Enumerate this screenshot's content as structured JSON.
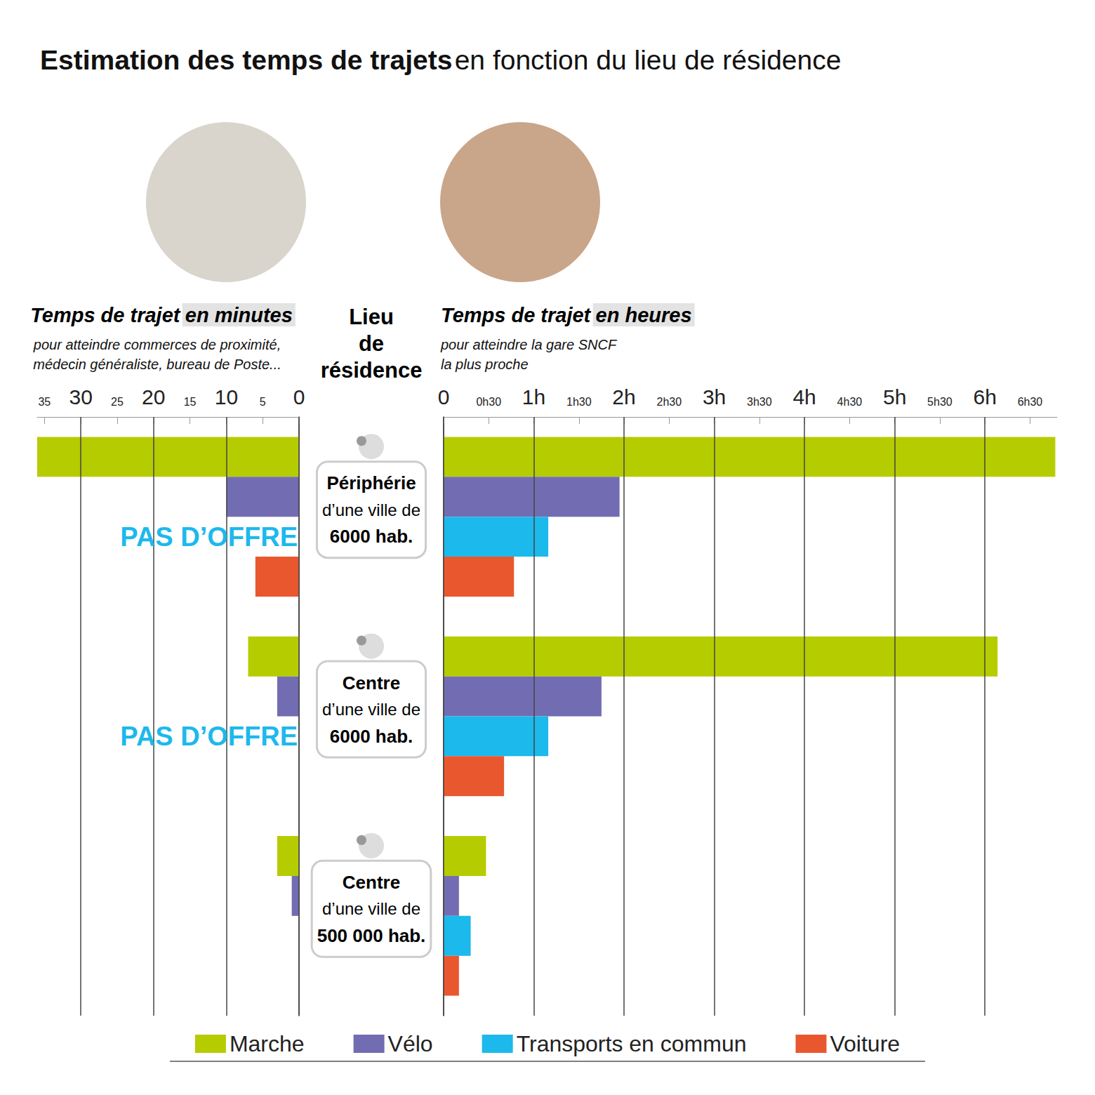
{
  "title": {
    "bold": "Estimation des temps de trajets",
    "regular": "en fonction du lieu de résidence"
  },
  "center_heading": "Lieu\nde\nrésidence",
  "chart_data": [
    {
      "type": "bar",
      "orientation": "horizontal",
      "title_parts": [
        "Temps de trajet",
        "en minutes"
      ],
      "subtitle": "pour atteindre commerces de proximité,\nmédecin généraliste, bureau de Poste...",
      "categories": [
        "Périphérie\nd’une ville de\n6000 hab.",
        "Centre\nd’une ville de\n6000 hab.",
        "Centre\nd’une ville de\n500 000 hab."
      ],
      "series": [
        {
          "name": "Marche",
          "color": "#b5cc00",
          "values": [
            36,
            7,
            3
          ]
        },
        {
          "name": "Vélo",
          "color": "#726db2",
          "values": [
            10,
            3,
            1
          ]
        },
        {
          "name": "Transports en commun",
          "color": "#1cb9ec",
          "values": [
            null,
            null,
            null
          ]
        },
        {
          "name": "Voiture",
          "color": "#e9572f",
          "values": [
            6,
            null,
            null
          ]
        }
      ],
      "xlim": [
        36,
        0
      ],
      "xticks": [
        0,
        5,
        10,
        15,
        20,
        25,
        30,
        35
      ],
      "grid": true,
      "legend": "bottom",
      "annotations": [
        {
          "text": "PAS D’OFFRE",
          "category": "Périphérie\nd’une ville de\n6000 hab.",
          "series": "Transports en commun"
        },
        {
          "text": "PAS D’OFFRE",
          "category": "Centre\nd’une ville de\n6000 hab.",
          "series": "Transports en commun"
        }
      ]
    },
    {
      "type": "bar",
      "orientation": "horizontal",
      "title_parts": [
        "Temps de trajet",
        "en heures"
      ],
      "subtitle": "pour atteindre la gare SNCF\nla plus proche",
      "categories": [
        "Périphérie\nd’une ville de\n6000 hab.",
        "Centre\nd’une ville de\n6000 hab.",
        "Centre\nd’une ville de\n500 000 hab."
      ],
      "series": [
        {
          "name": "Marche",
          "color": "#b5cc00",
          "values": [
            6.78,
            6.14,
            0.47
          ]
        },
        {
          "name": "Vélo",
          "color": "#726db2",
          "values": [
            1.95,
            1.75,
            0.17
          ]
        },
        {
          "name": "Transports en commun",
          "color": "#1cb9ec",
          "values": [
            1.16,
            1.16,
            0.3
          ]
        },
        {
          "name": "Voiture",
          "color": "#e9572f",
          "values": [
            0.78,
            0.67,
            0.17
          ]
        }
      ],
      "xlim": [
        0,
        6.8
      ],
      "xticks": [
        0,
        {
          "value": 0.5,
          "label": "0h30"
        },
        {
          "value": 1,
          "label": "1h"
        },
        {
          "value": 1.5,
          "label": "1h30"
        },
        {
          "value": 2,
          "label": "2h"
        },
        {
          "value": 2.5,
          "label": "2h30"
        },
        {
          "value": 3,
          "label": "3h"
        },
        {
          "value": 3.5,
          "label": "3h30"
        },
        {
          "value": 4,
          "label": "4h"
        },
        {
          "value": 4.5,
          "label": "4h30"
        },
        {
          "value": 5,
          "label": "5h"
        },
        {
          "value": 5.5,
          "label": "5h30"
        },
        {
          "value": 6,
          "label": "6h"
        },
        {
          "value": 6.5,
          "label": "6h30"
        }
      ],
      "grid": true,
      "legend": "bottom"
    }
  ]
}
